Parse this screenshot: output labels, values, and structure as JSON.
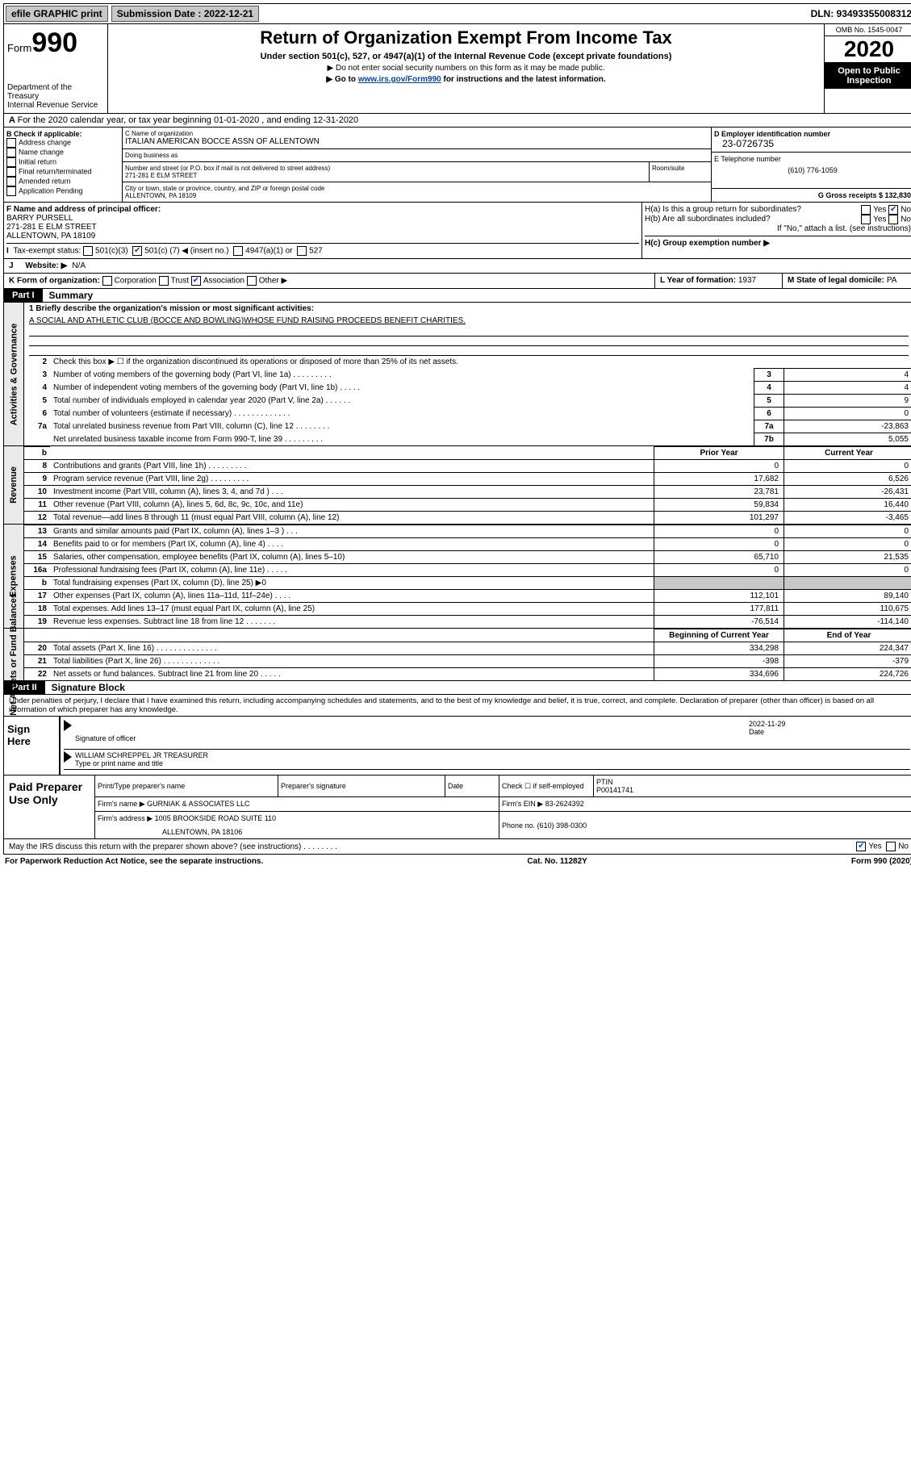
{
  "topbar": {
    "efile": "efile GRAPHIC print",
    "submission_label": "Submission Date : 2022-12-21",
    "dln": "DLN: 93493355008312"
  },
  "header": {
    "form_prefix": "Form",
    "form_number": "990",
    "dept": "Department of the Treasury",
    "irs": "Internal Revenue Service",
    "title": "Return of Organization Exempt From Income Tax",
    "subtitle": "Under section 501(c), 527, or 4947(a)(1) of the Internal Revenue Code (except private foundations)",
    "note1": "▶ Do not enter social security numbers on this form as it may be made public.",
    "note2_pre": "▶ Go to ",
    "note2_link": "www.irs.gov/Form990",
    "note2_post": " for instructions and the latest information.",
    "omb": "OMB No. 1545-0047",
    "year": "2020",
    "inspect": "Open to Public Inspection"
  },
  "periodA": "For the 2020 calendar year, or tax year beginning 01-01-2020    , and ending 12-31-2020",
  "checkB": {
    "label": "B Check if applicable:",
    "opts": [
      "Address change",
      "Name change",
      "Initial return",
      "Final return/terminated",
      "Amended return",
      "Application Pending"
    ]
  },
  "nameC": {
    "lab": "C Name of organization",
    "val": "ITALIAN AMERICAN BOCCE ASSN OF ALLENTOWN",
    "dba_lab": "Doing business as",
    "addr_lab": "Number and street (or P.O. box if mail is not delivered to street address)",
    "addr_val": "271-281 E ELM STREET",
    "room_lab": "Room/suite",
    "city_lab": "City or town, state or province, country, and ZIP or foreign postal code",
    "city_val": "ALLENTOWN, PA  18109"
  },
  "colD": {
    "ein_lab": "D Employer identification number",
    "ein_val": "23-0726735",
    "tel_lab": "E Telephone number",
    "tel_val": "(610) 776-1059",
    "gross_lab": "G Gross receipts $ 132,830"
  },
  "secF": {
    "lab": "F  Name and address of principal officer:",
    "name": "BARRY PURSELL",
    "addr": "271-281 E ELM STREET",
    "city": "ALLENTOWN, PA  18109"
  },
  "secH": {
    "ha": "H(a)  Is this a group return for subordinates?",
    "hb": "H(b)  Are all subordinates included?",
    "hnote": "If \"No,\" attach a list. (see instructions)",
    "hc": "H(c)  Group exemption number ▶",
    "yes": "Yes",
    "no": "No"
  },
  "secI": {
    "lab": "Tax-exempt status:",
    "c3": "501(c)(3)",
    "c_pre": "501(c) (",
    "c_val": "7",
    "c_post": ") ◀ (insert no.)",
    "a1": "4947(a)(1) or",
    "s527": "527"
  },
  "secJ": {
    "lab": "Website: ▶",
    "val": "N/A"
  },
  "secK": {
    "lab": "K Form of organization:",
    "corp": "Corporation",
    "trust": "Trust",
    "assn": "Association",
    "other": "Other ▶"
  },
  "secL": {
    "lab": "L Year of formation:",
    "val": "1937"
  },
  "secM": {
    "lab": "M State of legal domicile:",
    "val": "PA"
  },
  "partI": {
    "tag": "Part I",
    "title": "Summary"
  },
  "tab_labels": {
    "ag": "Activities & Governance",
    "rev": "Revenue",
    "exp": "Expenses",
    "na": "Net Assets or Fund Balances"
  },
  "mission": {
    "q1": "1  Briefly describe the organization's mission or most significant activities:",
    "a1": "A SOCIAL AND ATHLETIC CLUB (BOCCE AND BOWLING)WHOSE FUND RAISING PROCEEDS BENEFIT CHARITIES."
  },
  "lines_ag": [
    {
      "n": "2",
      "d": "Check this box ▶ ☐  if the organization discontinued its operations or disposed of more than 25% of its net assets.",
      "box": "",
      "val": ""
    },
    {
      "n": "3",
      "d": "Number of voting members of the governing body (Part VI, line 1a)  .    .    .    .    .    .    .    .    .",
      "box": "3",
      "val": "4"
    },
    {
      "n": "4",
      "d": "Number of independent voting members of the governing body (Part VI, line 1b)  .    .    .    .    .",
      "box": "4",
      "val": "4"
    },
    {
      "n": "5",
      "d": "Total number of individuals employed in calendar year 2020 (Part V, line 2a)  .    .    .    .    .    .",
      "box": "5",
      "val": "9"
    },
    {
      "n": "6",
      "d": "Total number of volunteers (estimate if necessary)  .    .    .    .    .    .    .    .    .    .    .    .    .",
      "box": "6",
      "val": "0"
    },
    {
      "n": "7a",
      "d": "Total unrelated business revenue from Part VIII, column (C), line 12  .    .    .    .    .    .    .    .",
      "box": "7a",
      "val": "-23,863"
    },
    {
      "n": "",
      "d": "Net unrelated business taxable income from Form 990-T, line 39  .    .    .    .    .    .    .    .    .",
      "box": "7b",
      "val": "5,055"
    }
  ],
  "col_hdr": {
    "b": "b",
    "py": "Prior Year",
    "cy": "Current Year"
  },
  "rev_rows": [
    {
      "n": "8",
      "d": "Contributions and grants (Part VIII, line 1h)  .    .    .    .    .    .    .    .    .",
      "py": "0",
      "cy": "0"
    },
    {
      "n": "9",
      "d": "Program service revenue (Part VIII, line 2g)  .    .    .    .    .    .    .    .    .",
      "py": "17,682",
      "cy": "6,526"
    },
    {
      "n": "10",
      "d": "Investment income (Part VIII, column (A), lines 3, 4, and 7d )  .    .    .",
      "py": "23,781",
      "cy": "-26,431"
    },
    {
      "n": "11",
      "d": "Other revenue (Part VIII, column (A), lines 5, 6d, 8c, 9c, 10c, and 11e)",
      "py": "59,834",
      "cy": "16,440"
    },
    {
      "n": "12",
      "d": "Total revenue—add lines 8 through 11 (must equal Part VIII, column (A), line 12)",
      "py": "101,297",
      "cy": "-3,465"
    }
  ],
  "exp_rows": [
    {
      "n": "13",
      "d": "Grants and similar amounts paid (Part IX, column (A), lines 1–3 )  .    .    .",
      "py": "0",
      "cy": "0"
    },
    {
      "n": "14",
      "d": "Benefits paid to or for members (Part IX, column (A), line 4)  .    .    .    .",
      "py": "0",
      "cy": "0"
    },
    {
      "n": "15",
      "d": "Salaries, other compensation, employee benefits (Part IX, column (A), lines 5–10)",
      "py": "65,710",
      "cy": "21,535"
    },
    {
      "n": "16a",
      "d": "Professional fundraising fees (Part IX, column (A), line 11e)  .    .    .    .    .",
      "py": "0",
      "cy": "0"
    },
    {
      "n": "b",
      "d": "Total fundraising expenses (Part IX, column (D), line 25) ▶0",
      "py": "",
      "cy": "",
      "shade": true
    },
    {
      "n": "17",
      "d": "Other expenses (Part IX, column (A), lines 11a–11d, 11f–24e)  .    .    .    .",
      "py": "112,101",
      "cy": "89,140"
    },
    {
      "n": "18",
      "d": "Total expenses. Add lines 13–17 (must equal Part IX, column (A), line 25)",
      "py": "177,811",
      "cy": "110,675"
    },
    {
      "n": "19",
      "d": "Revenue less expenses. Subtract line 18 from line 12  .    .    .    .    .    .    .",
      "py": "-76,514",
      "cy": "-114,140"
    }
  ],
  "na_hdr": {
    "py": "Beginning of Current Year",
    "cy": "End of Year"
  },
  "na_rows": [
    {
      "n": "20",
      "d": "Total assets (Part X, line 16)  .    .    .    .    .    .    .    .    .    .    .    .    .    .",
      "py": "334,298",
      "cy": "224,347"
    },
    {
      "n": "21",
      "d": "Total liabilities (Part X, line 26)  .    .    .    .    .    .    .    .    .    .    .    .    .",
      "py": "-398",
      "cy": "-379"
    },
    {
      "n": "22",
      "d": "Net assets or fund balances. Subtract line 21 from line 20  .    .    .    .    .",
      "py": "334,696",
      "cy": "224,726"
    }
  ],
  "partII": {
    "tag": "Part II",
    "title": "Signature Block"
  },
  "decl": "Under penalties of perjury, I declare that I have examined this return, including accompanying schedules and statements, and to the best of my knowledge and belief, it is true, correct, and complete. Declaration of preparer (other than officer) is based on all information of which preparer has any knowledge.",
  "sign": {
    "left": "Sign Here",
    "officer_lab": "Signature of officer",
    "date_val": "2022-11-29",
    "date_lab": "Date",
    "name_val": "WILLIAM SCHREPPEL JR  TREASURER",
    "name_lab": "Type or print name and title"
  },
  "prep": {
    "left": "Paid Preparer Use Only",
    "h1": "Print/Type preparer's name",
    "h2": "Preparer's signature",
    "h3": "Date",
    "h4_chk": "Check ☐  if self-employed",
    "h5": "PTIN",
    "ptin": "P00141741",
    "firm_lab": "Firm's name    ▶",
    "firm_val": "GURNIAK & ASSOCIATES LLC",
    "ein_lab": "Firm's EIN ▶",
    "ein_val": "83-2624392",
    "addr_lab": "Firm's address ▶",
    "addr_val": "1005 BROOKSIDE ROAD SUITE 110",
    "addr_val2": "ALLENTOWN, PA  18106",
    "phone_lab": "Phone no.",
    "phone_val": "(610) 398-0300"
  },
  "discuss": {
    "q": "May the IRS discuss this return with the preparer shown above? (see instructions)  .    .    .    .    .    .    .    .",
    "yes": "Yes",
    "no": "No"
  },
  "footer": {
    "left": "For Paperwork Reduction Act Notice, see the separate instructions.",
    "mid": "Cat. No. 11282Y",
    "right": "Form 990 (2020)"
  }
}
